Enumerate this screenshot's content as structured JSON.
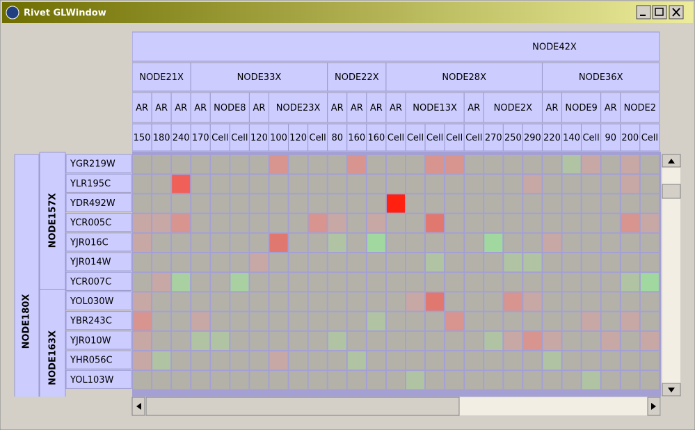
{
  "window": {
    "title": "Rivet GLWindow"
  },
  "column_headers": [
    [
      "NODE42X"
    ],
    [
      "NODE21X",
      "NODE33X",
      "NODE22X",
      "NODE28X",
      "NODE36X"
    ],
    [
      "AR",
      "AR",
      "AR",
      "AR",
      "NODE8",
      "AR",
      "NODE23X",
      "AR",
      "AR",
      "AR",
      "AR",
      "NODE13X",
      "AR",
      "NODE2X",
      "AR",
      "NODE9",
      "AR",
      "NODE2"
    ],
    [
      "150",
      "180",
      "240",
      "170",
      "Cell",
      "Cell",
      "120",
      "100",
      "120",
      "Cell",
      "80",
      "160",
      "160",
      "Cell",
      "Cell",
      "Cell",
      "Cell",
      "Cell",
      "270",
      "250",
      "290",
      "220",
      "140",
      "Cell",
      "90",
      "200",
      "Cell"
    ]
  ],
  "row_headers": {
    "level1": [
      "NODE180X"
    ],
    "level2": [
      "NODE157X",
      "NODE163X"
    ],
    "level3": [
      "YGR219W",
      "YLR195C",
      "YDR492W",
      "YCR005C",
      "YJR016C",
      "YJR014W",
      "YCR007C",
      "YOL030W",
      "YBR243C",
      "YJR010W",
      "YHR056C",
      "YOL103W"
    ]
  },
  "cells": [
    [
      "#b4b2a8",
      "#b4b2a8",
      "#b4b2a8",
      "#b4b2a8",
      "#b4b2a8",
      "#b4b2a8",
      "#b4b2a8",
      "#d8948e",
      "#b4b2a8",
      "#b4b2a8",
      "#b4b2a8",
      "#d8948e",
      "#b4b2a8",
      "#b4b2a8",
      "#b4b2a8",
      "#d8948e",
      "#d8948e",
      "#b4b2a8",
      "#b4b2a8",
      "#b4b2a8",
      "#b4b2a8",
      "#b4b2a8",
      "#b0c4a4",
      "#c8a8a4",
      "#b4b2a8",
      "#c8a8a4",
      "#b4b2a8"
    ],
    [
      "#b4b2a8",
      "#b4b2a8",
      "#f06058",
      "#b4b2a8",
      "#b4b2a8",
      "#b4b2a8",
      "#b4b2a8",
      "#b4b2a8",
      "#b4b2a8",
      "#b4b2a8",
      "#b4b2a8",
      "#b4b2a8",
      "#b4b2a8",
      "#b4b2a8",
      "#b4b2a8",
      "#b4b2a8",
      "#b4b2a8",
      "#b4b2a8",
      "#b4b2a8",
      "#b4b2a8",
      "#c8a8a4",
      "#b4b2a8",
      "#b4b2a8",
      "#b4b2a8",
      "#b4b2a8",
      "#c8a8a4",
      "#b4b2a8"
    ],
    [
      "#b4b2a8",
      "#b4b2a8",
      "#b4b2a8",
      "#b4b2a8",
      "#b4b2a8",
      "#b4b2a8",
      "#b4b2a8",
      "#b4b2a8",
      "#b4b2a8",
      "#b4b2a8",
      "#b4b2a8",
      "#b4b2a8",
      "#b4b2a8",
      "#ff2010",
      "#b4b2a8",
      "#b4b2a8",
      "#b4b2a8",
      "#b4b2a8",
      "#b4b2a8",
      "#b4b2a8",
      "#b4b2a8",
      "#b4b2a8",
      "#b4b2a8",
      "#b4b2a8",
      "#b4b2a8",
      "#b4b2a8",
      "#b4b2a8"
    ],
    [
      "#c8a8a4",
      "#c8a8a4",
      "#d8948e",
      "#b4b2a8",
      "#b4b2a8",
      "#b4b2a8",
      "#b4b2a8",
      "#b4b2a8",
      "#b4b2a8",
      "#d8948e",
      "#c8a8a4",
      "#b4b2a8",
      "#c8a8a4",
      "#b4b2a8",
      "#b4b2a8",
      "#e07870",
      "#b4b2a8",
      "#b4b2a8",
      "#b4b2a8",
      "#b4b2a8",
      "#b4b2a8",
      "#b4b2a8",
      "#b4b2a8",
      "#b4b2a8",
      "#b4b2a8",
      "#d8948e",
      "#c8a8a4"
    ],
    [
      "#c8a8a4",
      "#b4b2a8",
      "#b4b2a8",
      "#b4b2a8",
      "#b4b2a8",
      "#b4b2a8",
      "#b4b2a8",
      "#e07870",
      "#b4b2a8",
      "#b4b2a8",
      "#b0c4a4",
      "#b4b2a8",
      "#a0d8a0",
      "#b4b2a8",
      "#b4b2a8",
      "#b4b2a8",
      "#b4b2a8",
      "#b4b2a8",
      "#a0d8a0",
      "#b4b2a8",
      "#b4b2a8",
      "#c8a8a4",
      "#b4b2a8",
      "#b4b2a8",
      "#b4b2a8",
      "#b4b2a8",
      "#b4b2a8"
    ],
    [
      "#b4b2a8",
      "#b4b2a8",
      "#b4b2a8",
      "#b4b2a8",
      "#b4b2a8",
      "#b4b2a8",
      "#c8a8a4",
      "#b4b2a8",
      "#b4b2a8",
      "#b4b2a8",
      "#b4b2a8",
      "#b4b2a8",
      "#b4b2a8",
      "#b4b2a8",
      "#b4b2a8",
      "#b0c4a4",
      "#b4b2a8",
      "#b4b2a8",
      "#b4b2a8",
      "#b0c4a4",
      "#b0c4a4",
      "#b4b2a8",
      "#b4b2a8",
      "#b4b2a8",
      "#b4b2a8",
      "#b4b2a8",
      "#b4b2a8"
    ],
    [
      "#b4b2a8",
      "#c8a8a4",
      "#a8d0a0",
      "#b4b2a8",
      "#b4b2a8",
      "#a8d0a0",
      "#b4b2a8",
      "#b4b2a8",
      "#b4b2a8",
      "#b4b2a8",
      "#b4b2a8",
      "#b4b2a8",
      "#b4b2a8",
      "#b4b2a8",
      "#b4b2a8",
      "#b4b2a8",
      "#b4b2a8",
      "#b4b2a8",
      "#b4b2a8",
      "#b4b2a8",
      "#b4b2a8",
      "#b4b2a8",
      "#b4b2a8",
      "#b4b2a8",
      "#b4b2a8",
      "#b0c4a4",
      "#a0d8a0"
    ],
    [
      "#c8a8a4",
      "#b4b2a8",
      "#b4b2a8",
      "#b4b2a8",
      "#b4b2a8",
      "#b4b2a8",
      "#b4b2a8",
      "#b4b2a8",
      "#b4b2a8",
      "#b4b2a8",
      "#b4b2a8",
      "#b4b2a8",
      "#b4b2a8",
      "#b4b2a8",
      "#c8a8a4",
      "#e07870",
      "#b4b2a8",
      "#b4b2a8",
      "#b4b2a8",
      "#d8948e",
      "#c8a8a4",
      "#b4b2a8",
      "#b4b2a8",
      "#b4b2a8",
      "#b4b2a8",
      "#b4b2a8",
      "#b4b2a8"
    ],
    [
      "#d8948e",
      "#b4b2a8",
      "#b4b2a8",
      "#c8a8a4",
      "#b4b2a8",
      "#b4b2a8",
      "#b4b2a8",
      "#b4b2a8",
      "#b4b2a8",
      "#b4b2a8",
      "#b4b2a8",
      "#b4b2a8",
      "#b0c4a4",
      "#b4b2a8",
      "#b4b2a8",
      "#b4b2a8",
      "#d8948e",
      "#b4b2a8",
      "#b4b2a8",
      "#b4b2a8",
      "#b4b2a8",
      "#b4b2a8",
      "#b4b2a8",
      "#c8a8a4",
      "#b4b2a8",
      "#c8a8a4",
      "#b4b2a8"
    ],
    [
      "#c8a8a4",
      "#b4b2a8",
      "#b4b2a8",
      "#b0c4a4",
      "#b0c4a4",
      "#b4b2a8",
      "#b4b2a8",
      "#b4b2a8",
      "#b4b2a8",
      "#b4b2a8",
      "#b0c4a4",
      "#b4b2a8",
      "#b4b2a8",
      "#b4b2a8",
      "#b4b2a8",
      "#b4b2a8",
      "#b4b2a8",
      "#b4b2a8",
      "#b0c4a4",
      "#c8a8a4",
      "#d8948e",
      "#c8a8a4",
      "#b4b2a8",
      "#b4b2a8",
      "#c8a8a4",
      "#b4b2a8",
      "#c8a8a4"
    ],
    [
      "#c8a8a4",
      "#b0c4a4",
      "#b4b2a8",
      "#b4b2a8",
      "#b4b2a8",
      "#b4b2a8",
      "#b4b2a8",
      "#c8a8a4",
      "#b4b2a8",
      "#b4b2a8",
      "#b4b2a8",
      "#b0c4a4",
      "#b4b2a8",
      "#b4b2a8",
      "#b4b2a8",
      "#b4b2a8",
      "#b4b2a8",
      "#b4b2a8",
      "#b4b2a8",
      "#b4b2a8",
      "#b4b2a8",
      "#b0c4a4",
      "#b4b2a8",
      "#b4b2a8",
      "#b4b2a8",
      "#b4b2a8",
      "#b4b2a8"
    ],
    [
      "#b4b2a8",
      "#b4b2a8",
      "#b4b2a8",
      "#b4b2a8",
      "#b4b2a8",
      "#b4b2a8",
      "#b4b2a8",
      "#b4b2a8",
      "#b4b2a8",
      "#b4b2a8",
      "#b4b2a8",
      "#b4b2a8",
      "#b4b2a8",
      "#b4b2a8",
      "#b0c4a4",
      "#b4b2a8",
      "#b4b2a8",
      "#b4b2a8",
      "#b4b2a8",
      "#b4b2a8",
      "#b4b2a8",
      "#b4b2a8",
      "#b4b2a8",
      "#b0c4a4",
      "#b4b2a8",
      "#b4b2a8",
      "#b4b2a8"
    ]
  ]
}
